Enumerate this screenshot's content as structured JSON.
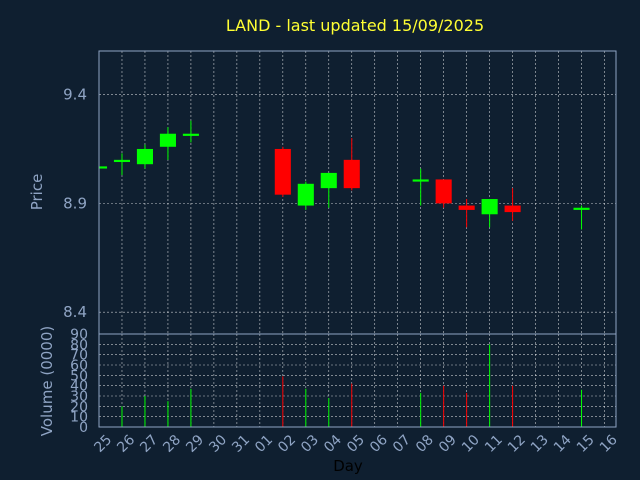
{
  "colors": {
    "background": "#0f1f30",
    "up": "#00ff00",
    "down": "#ff0000",
    "title": "#ffff33",
    "axis_text": "#8fa4c4",
    "grid": "#ffffff"
  },
  "chart_data": {
    "type": "candlestick",
    "title": "LAND - last updated 15/09/2025",
    "xlabel": "Day",
    "ylabel": "Price",
    "volume_label": "Volume (0000)",
    "price_ylim": [
      8.3,
      9.6
    ],
    "price_ticks": [
      "8.4",
      "8.9",
      "9.4",
      "9.9"
    ],
    "volume_ylim": [
      0,
      90
    ],
    "volume_ticks": [
      "0",
      "10",
      "20",
      "30",
      "40",
      "50",
      "60",
      "70",
      "80",
      "90"
    ],
    "grid": true,
    "x_tick_labels": [
      "25",
      "26",
      "27",
      "28",
      "29",
      "30",
      "31",
      "01",
      "02",
      "03",
      "04",
      "05",
      "06",
      "07",
      "08",
      "09",
      "10",
      "11",
      "12",
      "13",
      "14",
      "15",
      "16"
    ],
    "candles": [
      {
        "day": "25",
        "open": 9.06,
        "close": 9.07,
        "high": 9.08,
        "low": 9.05,
        "volume": 0
      },
      {
        "day": "26",
        "open": 9.09,
        "close": 9.1,
        "high": 9.13,
        "low": 9.03,
        "volume": 20
      },
      {
        "day": "27",
        "open": 9.08,
        "close": 9.15,
        "high": 9.17,
        "low": 9.06,
        "volume": 30
      },
      {
        "day": "28",
        "open": 9.16,
        "close": 9.22,
        "high": 9.25,
        "low": 9.1,
        "volume": 25
      },
      {
        "day": "29",
        "open": 9.21,
        "close": 9.22,
        "high": 9.28,
        "low": 9.18,
        "volume": 37
      },
      {
        "day": "02",
        "open": 9.15,
        "close": 8.94,
        "high": 9.16,
        "low": 8.93,
        "volume": 49
      },
      {
        "day": "03",
        "open": 8.89,
        "close": 8.99,
        "high": 9.0,
        "low": 8.87,
        "volume": 37
      },
      {
        "day": "04",
        "open": 8.97,
        "close": 9.04,
        "high": 9.04,
        "low": 8.88,
        "volume": 28
      },
      {
        "day": "05",
        "open": 9.1,
        "close": 8.97,
        "high": 9.2,
        "low": 8.96,
        "volume": 42
      },
      {
        "day": "08",
        "open": 9.0,
        "close": 9.01,
        "high": 9.06,
        "low": 8.89,
        "volume": 33
      },
      {
        "day": "09",
        "open": 9.01,
        "close": 8.9,
        "high": 9.01,
        "low": 8.88,
        "volume": 40
      },
      {
        "day": "10",
        "open": 8.89,
        "close": 8.87,
        "high": 8.92,
        "low": 8.79,
        "volume": 33
      },
      {
        "day": "11",
        "open": 8.85,
        "close": 8.92,
        "high": 8.92,
        "low": 8.79,
        "volume": 80
      },
      {
        "day": "12",
        "open": 8.89,
        "close": 8.86,
        "high": 8.97,
        "low": 8.82,
        "volume": 40
      },
      {
        "day": "15",
        "open": 8.87,
        "close": 8.88,
        "high": 8.89,
        "low": 8.78,
        "volume": 36
      }
    ]
  }
}
